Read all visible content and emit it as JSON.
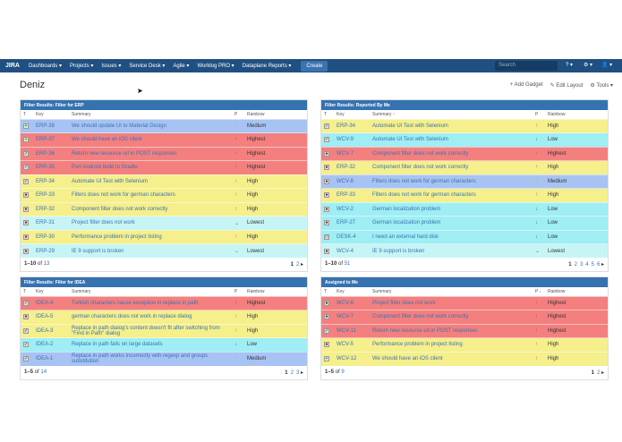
{
  "nav": {
    "logo": "JIRA",
    "items": [
      "Dashboards ▾",
      "Projects ▾",
      "Issues ▾",
      "Service Desk ▾",
      "Agile ▾",
      "Worklog PRO ▾",
      "Dataplane Reports ▾"
    ],
    "create": "Create",
    "search_placeholder": "Search",
    "help": "? ▾",
    "settings": "⚙ ▾",
    "avatar": "👤 ▾"
  },
  "page": {
    "title": "Deniz",
    "add_gadget": "+ Add Gadget",
    "edit_layout": "✎ Edit Layout",
    "tools": "⚙ Tools ▾"
  },
  "colors": {
    "Highest": "#f47f7f",
    "High": "#f5ef8c",
    "Medium": "#a7c3f3",
    "Low": "#9eeef4",
    "Lowest": "#c7f5f5",
    "nav": "#205081",
    "header": "#3572b0"
  },
  "columns": {
    "t": "T",
    "key": "Key",
    "summary": "Summary",
    "p": "P",
    "rainbow": "Rainbow"
  },
  "gadgets": [
    {
      "title": "Filter Results: Filter for ERP",
      "summary_header": "Summary",
      "p_header": "P",
      "range": "1–10",
      "total": "13",
      "pages": [
        "1",
        "2"
      ],
      "rows": [
        [
          "plus",
          "ERP-38",
          "We should update UI to Material Design",
          "Medium"
        ],
        [
          "plus",
          "ERP-37",
          "We should have an iOS client",
          "Highest"
        ],
        [
          "task",
          "ERP-36",
          "Return new resource url in POST responses",
          "Highest"
        ],
        [
          "task",
          "ERP-35",
          "Port Android build to Gradle",
          "Highest"
        ],
        [
          "task",
          "ERP-34",
          "Automate UI Test with Selenium",
          "High"
        ],
        [
          "bug",
          "ERP-33",
          "Filters does not work for german characters",
          "High"
        ],
        [
          "bug",
          "ERP-32",
          "Component filter does not work correctly",
          "High"
        ],
        [
          "bug",
          "ERP-31",
          "Project filter does not work",
          "Lowest"
        ],
        [
          "bug",
          "ERP-30",
          "Performance problem in project listing",
          "High"
        ],
        [
          "bug",
          "ERP-29",
          "IE 9 support is broken",
          "Lowest"
        ]
      ]
    },
    {
      "title": "Filter Results: Reported By Me",
      "summary_header": "Summary ↑",
      "p_header": "P",
      "range": "1–10",
      "total": "51",
      "pages": [
        "1",
        "2",
        "3",
        "4",
        "5",
        "6"
      ],
      "rows": [
        [
          "task",
          "ERP-34",
          "Automate UI Test with Selenium",
          "High"
        ],
        [
          "task",
          "WCV-9",
          "Automate UI Test with Selenium",
          "Low"
        ],
        [
          "bug",
          "WCV-7",
          "Component filter does not work correctly",
          "Highest"
        ],
        [
          "bug",
          "ERP-32",
          "Component filter does not work correctly",
          "High"
        ],
        [
          "bug",
          "WCV-8",
          "Filters does not work for german characters",
          "Medium"
        ],
        [
          "bug",
          "ERP-33",
          "Filters does not work for german characters",
          "High"
        ],
        [
          "bug",
          "WCV-2",
          "German localization problem",
          "Low"
        ],
        [
          "bug",
          "ERP-27",
          "German localization problem",
          "Low"
        ],
        [
          "sd",
          "DESK-4",
          "I need an external hard disk",
          "Low"
        ],
        [
          "bug",
          "WCV-4",
          "IE 9 support is broken",
          "Lowest"
        ]
      ]
    },
    {
      "title": "Filter Results: Filter for IDEA",
      "summary_header": "Summary",
      "p_header": "P",
      "range": "1–5",
      "total": "14",
      "pages": [
        "1",
        "2",
        "3"
      ],
      "rows": [
        [
          "task",
          "IDEA-4",
          "Turkish characters cause exception in replace in path",
          "Highest"
        ],
        [
          "bug",
          "IDEA-5",
          "german characters does not work in replace dialog",
          "High"
        ],
        [
          "task",
          "IDEA-3",
          "Replace in path dialog's content doesn't fit after switching from \"Find in Path\" dialog",
          "High"
        ],
        [
          "task",
          "IDEA-2",
          "Replace in path fails on large datasets",
          "Low"
        ],
        [
          "task",
          "IDEA-1",
          "Replace in path works incorrectly with regexp and groups substitution",
          "Medium"
        ]
      ]
    },
    {
      "title": "Assigned to Me",
      "summary_header": "Summary",
      "p_header": "P ↓",
      "range": "1–5",
      "total": "9",
      "pages": [
        "1",
        "2"
      ],
      "rows": [
        [
          "bug",
          "WCV-6",
          "Project filter does not work",
          "Highest"
        ],
        [
          "bug",
          "WCV-7",
          "Component filter does not work correctly",
          "Highest"
        ],
        [
          "task",
          "WCV-11",
          "Return new resource url in POST responses",
          "Highest"
        ],
        [
          "bug",
          "WCV-5",
          "Performance problem in project listing",
          "High"
        ],
        [
          "plus",
          "WCV-12",
          "We should have an iOS client",
          "High"
        ]
      ]
    }
  ]
}
